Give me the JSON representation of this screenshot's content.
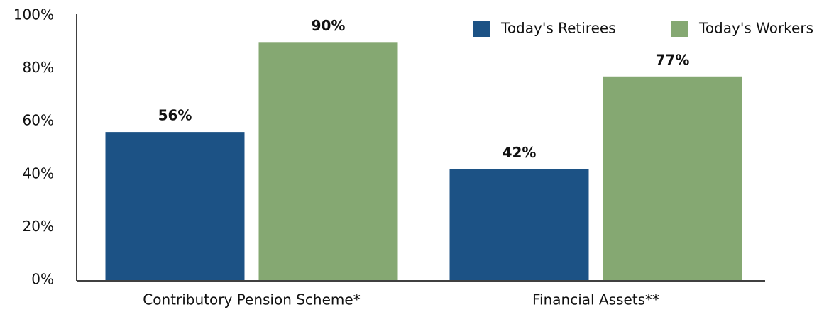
{
  "chart_data": {
    "type": "bar",
    "categories": [
      "Contributory Pension Scheme*",
      "Financial Assets**"
    ],
    "series": [
      {
        "name": "Today's Retirees",
        "color": "#1c5285",
        "values": [
          56,
          42
        ],
        "value_labels": [
          "56%",
          "42%"
        ]
      },
      {
        "name": "Today's Workers",
        "color": "#85a872",
        "values": [
          90,
          77
        ],
        "value_labels": [
          "90%",
          "77%"
        ]
      }
    ],
    "ylim": [
      0,
      100
    ],
    "yticks": [
      {
        "value": 0,
        "label": "0%"
      },
      {
        "value": 20,
        "label": "20%"
      },
      {
        "value": 40,
        "label": "40%"
      },
      {
        "value": 60,
        "label": "60%"
      },
      {
        "value": 80,
        "label": "80%"
      },
      {
        "value": 100,
        "label": "100%"
      }
    ],
    "grid": false,
    "legend": "top-right"
  }
}
